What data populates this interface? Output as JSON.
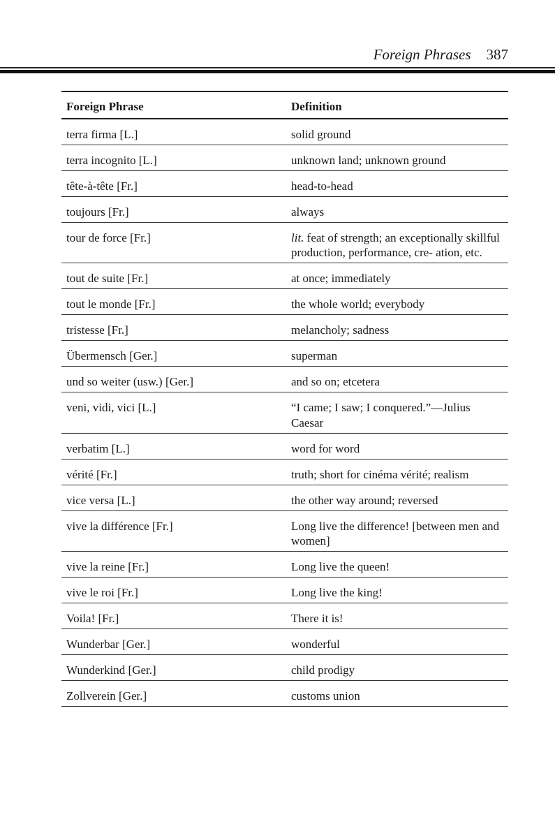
{
  "running_head": {
    "title": "Foreign Phrases",
    "page_number": "387"
  },
  "table": {
    "headers": [
      "Foreign Phrase",
      "Definition"
    ],
    "rows": [
      {
        "phrase": "terra firma [L.]",
        "definition": "solid ground"
      },
      {
        "phrase": "terra incognito [L.]",
        "definition": "unknown land; unknown ground"
      },
      {
        "phrase": "tête-à-tête [Fr.]",
        "definition": "head-to-head"
      },
      {
        "phrase": "toujours [Fr.]",
        "definition": "always"
      },
      {
        "phrase": "tour de force [Fr.]",
        "definition_italic": "lit.",
        "definition": " feat of strength; an exceptionally skillful production, performance, cre- ation, etc."
      },
      {
        "phrase": "tout de suite [Fr.]",
        "definition": "at once; immediately"
      },
      {
        "phrase": "tout le monde [Fr.]",
        "definition": "the whole world; everybody"
      },
      {
        "phrase": "tristesse [Fr.]",
        "definition": "melancholy; sadness"
      },
      {
        "phrase": "Übermensch [Ger.]",
        "definition": "superman"
      },
      {
        "phrase": "und so weiter (usw.) [Ger.]",
        "definition": "and so on; etcetera"
      },
      {
        "phrase": "veni, vidi, vici [L.]",
        "definition": "“I came; I saw; I conquered.”—Julius Caesar"
      },
      {
        "phrase": "verbatim [L.]",
        "definition": "word for word"
      },
      {
        "phrase": "vérité [Fr.]",
        "definition": "truth; short for cinéma vérité; realism"
      },
      {
        "phrase": "vice versa [L.]",
        "definition": "the other way around; reversed"
      },
      {
        "phrase": "vive la différence [Fr.]",
        "definition": "Long live the difference! [between men and women]"
      },
      {
        "phrase": "vive la reine [Fr.]",
        "definition": "Long live the queen!"
      },
      {
        "phrase": "vive le roi [Fr.]",
        "definition": "Long live the king!"
      },
      {
        "phrase": "Voila! [Fr.]",
        "definition": "There it is!"
      },
      {
        "phrase": "Wunderbar [Ger.]",
        "definition": "wonderful"
      },
      {
        "phrase": "Wunderkind [Ger.]",
        "definition": "child prodigy"
      },
      {
        "phrase": "Zollverein [Ger.]",
        "definition": "customs union"
      }
    ]
  }
}
